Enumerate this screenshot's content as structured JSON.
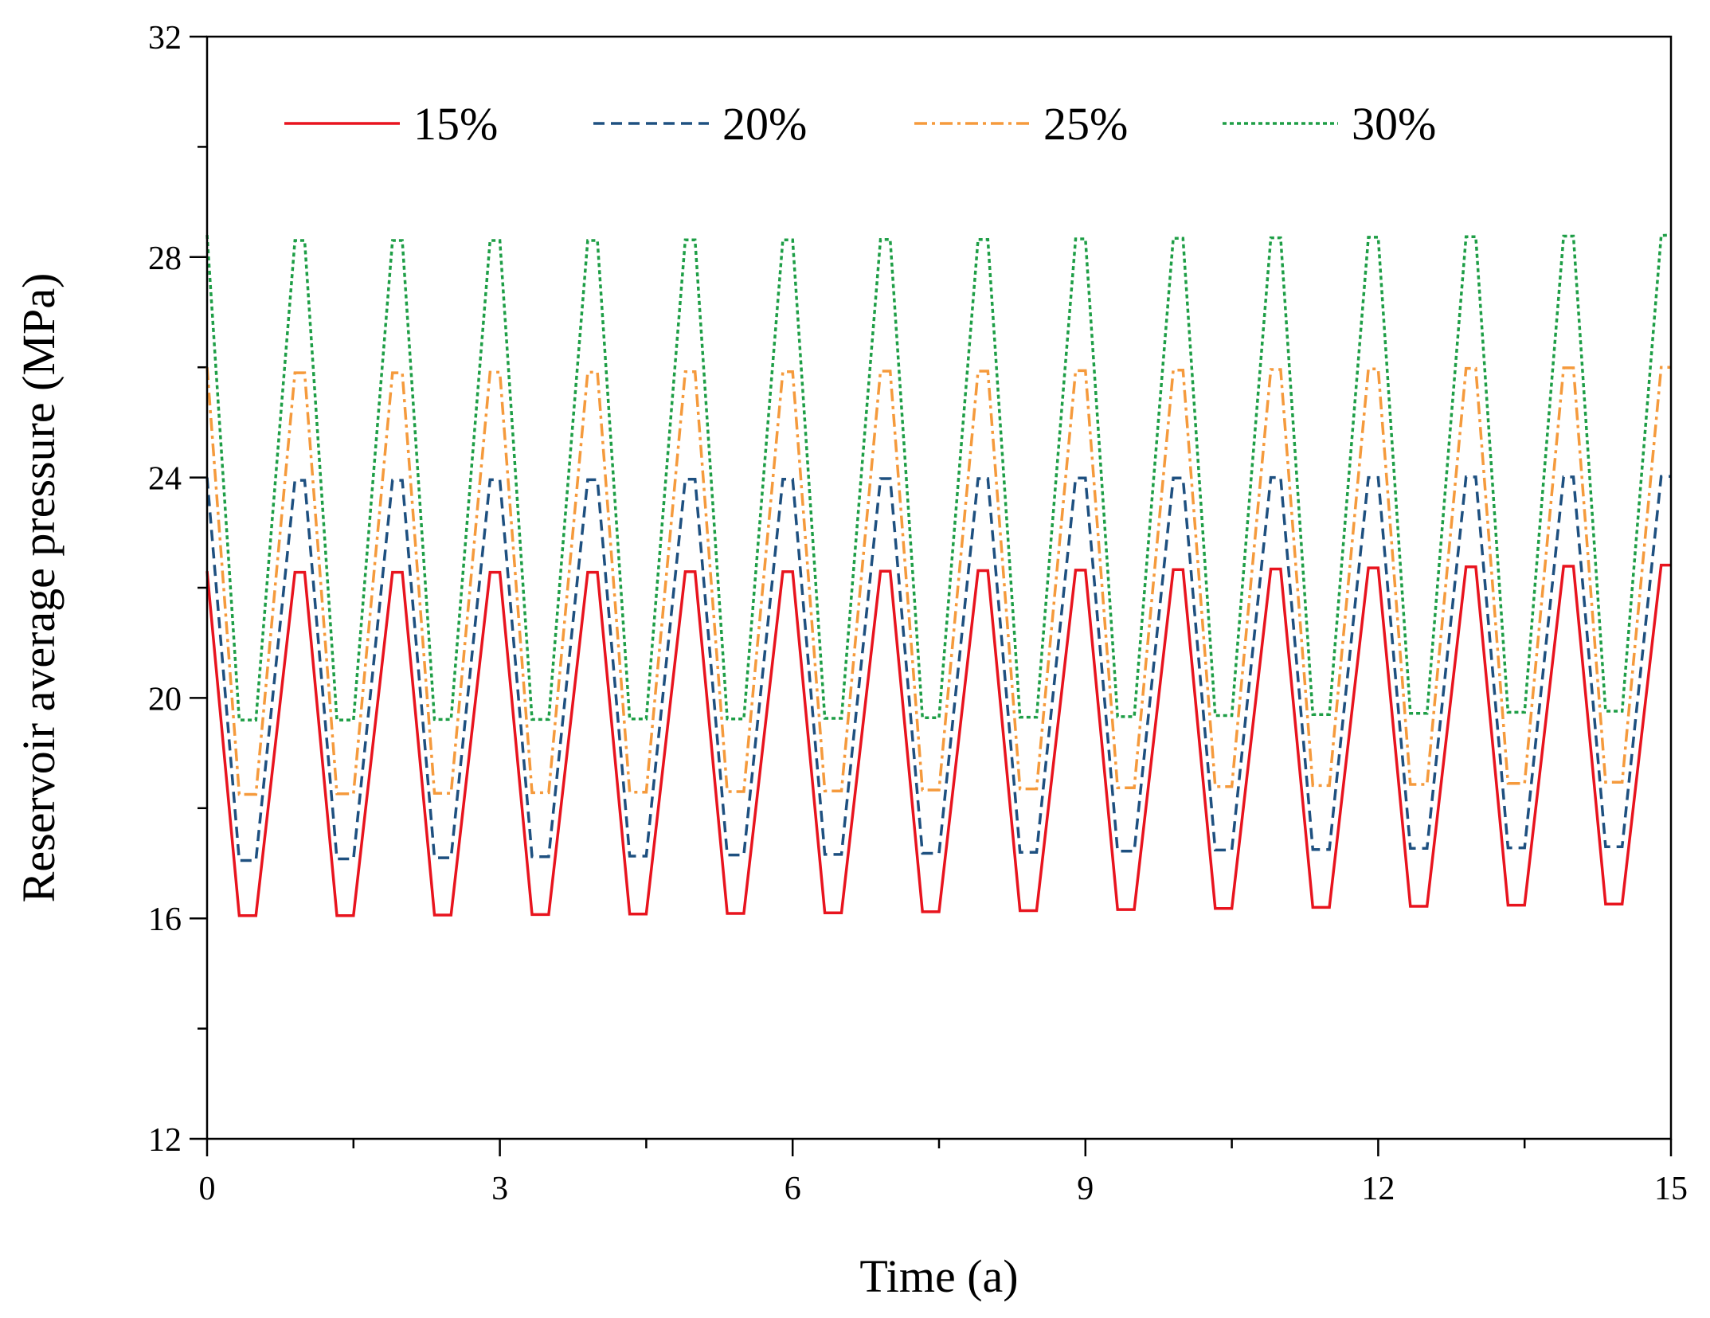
{
  "chart_data": {
    "type": "line",
    "title": "",
    "xlabel": "Time (a)",
    "ylabel": "Reservoir average pressure (MPa)",
    "xlim": [
      0,
      15
    ],
    "ylim": [
      12,
      32
    ],
    "xticks": [
      0,
      3,
      6,
      9,
      12,
      15
    ],
    "yticks": [
      12,
      16,
      20,
      24,
      28,
      32
    ],
    "x_minor_step": 1.5,
    "y_minor_step": 2,
    "grid": false,
    "legend_position": "top",
    "x": [
      0,
      0.33,
      0.5,
      0.9,
      1.0,
      1.33,
      1.5,
      1.9,
      2.0,
      2.33,
      2.5,
      2.9,
      3.0,
      3.33,
      3.5,
      3.9,
      4.0,
      4.33,
      4.5,
      4.9,
      5.0,
      5.33,
      5.5,
      5.9,
      6.0,
      6.33,
      6.5,
      6.9,
      7.0,
      7.33,
      7.5,
      7.9,
      8.0,
      8.33,
      8.5,
      8.9,
      9.0,
      9.33,
      9.5,
      9.9,
      10.0,
      10.33,
      10.5,
      10.9,
      11.0,
      11.33,
      11.5,
      11.9,
      12.0,
      12.33,
      12.5,
      12.9,
      13.0,
      13.33,
      13.5,
      13.9,
      14.0,
      14.33,
      14.5,
      14.9,
      15.0
    ],
    "series": [
      {
        "name": "15%",
        "color": "#e8141e",
        "dash": "solid",
        "values": [
          22.3,
          16.05,
          16.05,
          22.28,
          22.28,
          16.05,
          16.05,
          22.28,
          22.28,
          16.06,
          16.06,
          22.28,
          22.28,
          16.07,
          16.07,
          22.28,
          22.28,
          16.08,
          16.08,
          22.29,
          22.29,
          16.09,
          16.09,
          22.29,
          22.29,
          16.1,
          16.1,
          22.3,
          22.3,
          16.12,
          16.12,
          22.31,
          22.31,
          16.14,
          16.14,
          22.32,
          22.32,
          16.16,
          16.16,
          22.33,
          22.33,
          16.18,
          16.18,
          22.34,
          22.34,
          16.2,
          16.2,
          22.36,
          22.36,
          16.22,
          16.22,
          22.38,
          22.38,
          16.24,
          16.24,
          22.39,
          22.39,
          16.26,
          16.26,
          22.41,
          22.41
        ]
      },
      {
        "name": "20%",
        "color": "#1e5080",
        "dash": "dashed",
        "values": [
          24.0,
          17.05,
          17.05,
          23.95,
          23.95,
          17.08,
          17.08,
          23.95,
          23.95,
          17.1,
          17.1,
          23.96,
          23.96,
          17.12,
          17.12,
          23.96,
          23.96,
          17.13,
          17.13,
          23.97,
          23.97,
          17.15,
          17.15,
          23.97,
          23.97,
          17.16,
          17.16,
          23.98,
          23.98,
          17.18,
          17.18,
          23.98,
          23.98,
          17.2,
          17.2,
          23.99,
          23.99,
          17.22,
          17.22,
          23.99,
          23.99,
          17.24,
          17.24,
          24.0,
          24.0,
          17.25,
          17.25,
          24.0,
          24.0,
          17.27,
          17.27,
          24.01,
          24.01,
          17.28,
          17.28,
          24.01,
          24.01,
          17.3,
          17.3,
          24.02,
          24.02
        ]
      },
      {
        "name": "25%",
        "color": "#f59a3c",
        "dash": "dash-dot",
        "values": [
          26.0,
          18.25,
          18.25,
          25.9,
          25.9,
          18.26,
          18.26,
          25.9,
          25.9,
          18.27,
          18.27,
          25.91,
          25.91,
          18.28,
          18.28,
          25.91,
          25.91,
          18.29,
          18.29,
          25.92,
          25.92,
          18.3,
          18.3,
          25.92,
          25.92,
          18.31,
          18.31,
          25.93,
          25.93,
          18.33,
          18.33,
          25.93,
          25.93,
          18.35,
          18.35,
          25.94,
          25.94,
          18.37,
          18.37,
          25.95,
          25.95,
          18.39,
          18.39,
          25.96,
          25.96,
          18.41,
          18.41,
          25.97,
          25.97,
          18.43,
          18.43,
          25.98,
          25.98,
          18.45,
          18.45,
          25.99,
          25.99,
          18.47,
          18.47,
          26.0,
          26.0
        ]
      },
      {
        "name": "30%",
        "color": "#1e9e46",
        "dash": "dotted",
        "values": [
          28.4,
          19.6,
          19.6,
          28.3,
          28.3,
          19.6,
          19.6,
          28.3,
          28.3,
          19.61,
          19.61,
          28.3,
          28.3,
          19.61,
          19.61,
          28.3,
          28.3,
          19.62,
          19.62,
          28.31,
          28.31,
          19.62,
          19.62,
          28.31,
          28.31,
          19.63,
          19.63,
          28.32,
          28.32,
          19.64,
          19.64,
          28.32,
          28.32,
          19.65,
          19.65,
          28.33,
          28.33,
          19.66,
          19.66,
          28.34,
          28.34,
          19.68,
          19.68,
          28.35,
          28.35,
          19.7,
          19.7,
          28.36,
          28.36,
          19.72,
          19.72,
          28.37,
          28.37,
          19.74,
          19.74,
          28.38,
          28.38,
          19.76,
          19.76,
          28.39,
          28.4
        ]
      }
    ]
  }
}
